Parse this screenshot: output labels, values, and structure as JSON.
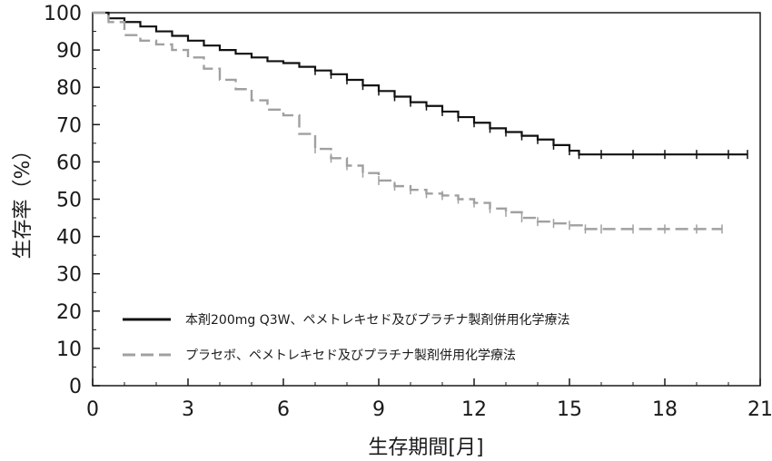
{
  "chart_data": {
    "type": "line",
    "title": "",
    "xlabel": "生存期間[月]",
    "ylabel": "生存率（%）",
    "xlim": [
      0,
      21
    ],
    "ylim": [
      0,
      100
    ],
    "x_ticks": [
      "0",
      "3",
      "6",
      "9",
      "12",
      "15",
      "18",
      "21"
    ],
    "y_ticks": [
      "0",
      "10",
      "20",
      "30",
      "40",
      "50",
      "60",
      "70",
      "80",
      "90",
      "100"
    ],
    "grid": false,
    "legend_position": "bottom-left",
    "series": [
      {
        "name": "本剤200mg Q3W、ペメトレキセド及びプラチナ製剤併用化学療法",
        "color": "#111111",
        "style": "solid",
        "x": [
          0,
          0.5,
          1,
          1.5,
          2,
          2.5,
          3,
          3.5,
          4,
          4.5,
          5,
          5.5,
          6,
          6.5,
          7,
          7.5,
          8,
          8.5,
          9,
          9.5,
          10,
          10.5,
          11,
          11.5,
          12,
          12.5,
          13,
          13.5,
          14,
          14.5,
          15,
          15.3,
          16,
          17,
          18,
          19,
          20,
          20.6
        ],
        "y": [
          100,
          98.5,
          97.5,
          96.3,
          95,
          93.8,
          92.5,
          91.2,
          90,
          89,
          88,
          87,
          86.5,
          85.5,
          84.5,
          83.5,
          82,
          80.5,
          79,
          77.5,
          76,
          75,
          73.5,
          72,
          70.5,
          69,
          68,
          67,
          66,
          64.5,
          63,
          62,
          62,
          62,
          62,
          62,
          62,
          62
        ]
      },
      {
        "name": "プラセボ、ペメトレキセド及びプラチナ製剤併用化学療法",
        "color": "#a0a0a0",
        "style": "dashed",
        "x": [
          0,
          0.5,
          1,
          1.5,
          2,
          2.5,
          3,
          3.5,
          4,
          4.5,
          5,
          5.5,
          6,
          6.5,
          7,
          7.5,
          8,
          8.5,
          9,
          9.5,
          10,
          10.5,
          11,
          11.5,
          12,
          12.5,
          13,
          13.5,
          14,
          14.5,
          15,
          15.5,
          16,
          17,
          18,
          19,
          19.8
        ],
        "y": [
          100,
          97.5,
          94,
          92.5,
          91.5,
          90,
          88,
          85,
          82,
          79.5,
          76.5,
          74,
          72.5,
          67.5,
          63.5,
          61,
          59,
          57,
          55,
          53.5,
          52.5,
          51.5,
          51,
          50,
          49,
          47.5,
          46.5,
          45,
          44,
          43.5,
          43,
          42,
          42,
          42,
          42,
          42,
          42
        ]
      }
    ]
  }
}
